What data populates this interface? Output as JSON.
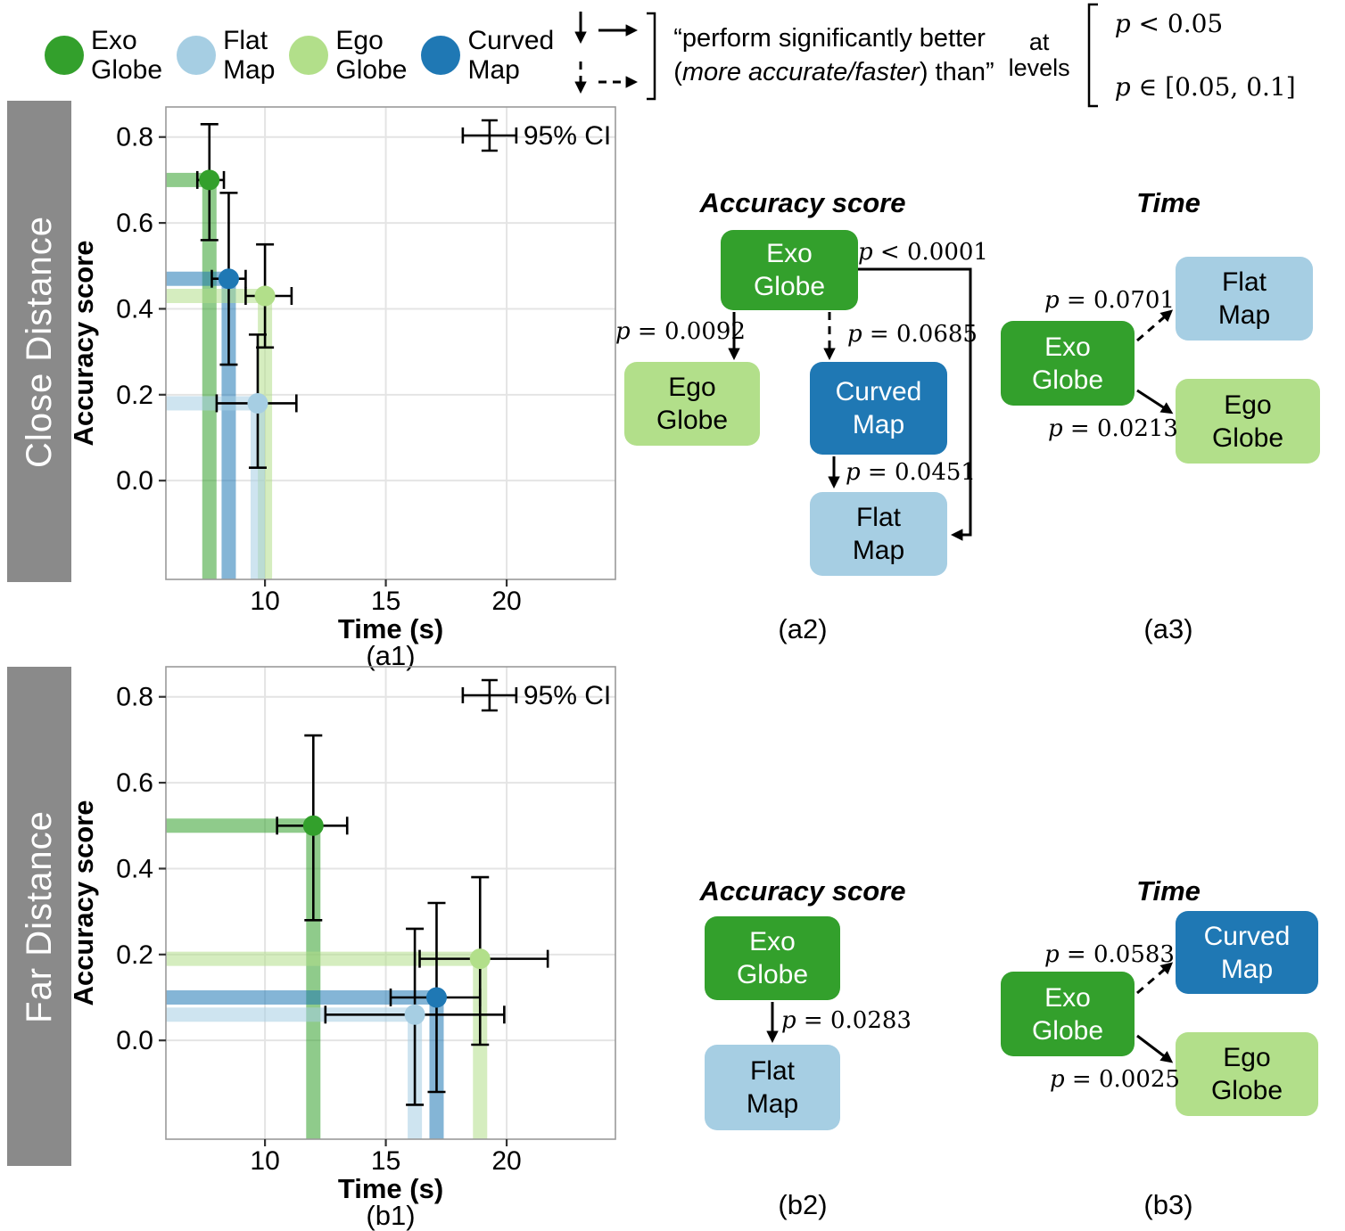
{
  "colors": {
    "exo_globe": "#33a02c",
    "flat_map": "#a6cee3",
    "ego_globe": "#b2df8a",
    "curved_map": "#1f78b4",
    "row_label_bg": "#8a8a8a",
    "grid": "#e4e4e4",
    "panel_border": "#9a9a9a"
  },
  "conditions": {
    "exo": {
      "line1": "Exo",
      "line2": "Globe",
      "color_key": "exo_globe"
    },
    "flat": {
      "line1": "Flat",
      "line2": "Map",
      "color_key": "flat_map"
    },
    "ego": {
      "line1": "Ego",
      "line2": "Globe",
      "color_key": "ego_globe"
    },
    "curved": {
      "line1": "Curved",
      "line2": "Map",
      "color_key": "curved_map"
    }
  },
  "header": {
    "quote_line1": "“perform significantly better",
    "quote_pre": "(",
    "quote_italic": "more accurate/faster",
    "quote_post": ") than”",
    "at_word": "at",
    "levels_word": "levels",
    "solid_level": "p < 0.05",
    "dashed_level": "p ∈ [0.05, 0.1]"
  },
  "rows": {
    "close": {
      "label": "Close Distance"
    },
    "far": {
      "label": "Far Distance"
    }
  },
  "chart_data": [
    {
      "id": "a1",
      "type": "scatter",
      "caption": "(a1)",
      "xlabel": "Time (s)",
      "ylabel": "Accuracy score",
      "ci_legend": "95% CI",
      "grid": true,
      "xlim": [
        5.9,
        24.5
      ],
      "ylim": [
        -0.23,
        0.87
      ],
      "xticks": [
        10,
        15,
        20
      ],
      "xtick_labels": [
        "10",
        "15",
        "20"
      ],
      "yticks": [
        0,
        0.2,
        0.4,
        0.6,
        0.8
      ],
      "ytick_labels": [
        "0.0",
        "0.2",
        "0.4",
        "0.6",
        "0.8"
      ],
      "points": [
        {
          "name": "Exo Globe",
          "key": "exo",
          "x": 7.7,
          "y": 0.7,
          "x_ci": [
            7.2,
            8.3
          ],
          "y_ci": [
            0.56,
            0.83
          ]
        },
        {
          "name": "Curved Map",
          "key": "curved",
          "x": 8.5,
          "y": 0.47,
          "x_ci": [
            7.8,
            9.2
          ],
          "y_ci": [
            0.27,
            0.67
          ]
        },
        {
          "name": "Ego Globe",
          "key": "ego",
          "x": 10.0,
          "y": 0.43,
          "x_ci": [
            9.2,
            11.1
          ],
          "y_ci": [
            0.31,
            0.55
          ]
        },
        {
          "name": "Flat Map",
          "key": "flat",
          "x": 9.7,
          "y": 0.18,
          "x_ci": [
            8.0,
            11.3
          ],
          "y_ci": [
            0.03,
            0.34
          ]
        }
      ]
    },
    {
      "id": "b1",
      "type": "scatter",
      "caption": "(b1)",
      "xlabel": "Time (s)",
      "ylabel": "Accuracy score",
      "ci_legend": "95% CI",
      "grid": true,
      "xlim": [
        5.9,
        24.5
      ],
      "ylim": [
        -0.23,
        0.87
      ],
      "xticks": [
        10,
        15,
        20
      ],
      "xtick_labels": [
        "10",
        "15",
        "20"
      ],
      "yticks": [
        0,
        0.2,
        0.4,
        0.6,
        0.8
      ],
      "ytick_labels": [
        "0.0",
        "0.2",
        "0.4",
        "0.6",
        "0.8"
      ],
      "points": [
        {
          "name": "Exo Globe",
          "key": "exo",
          "x": 12.0,
          "y": 0.5,
          "x_ci": [
            10.5,
            13.4
          ],
          "y_ci": [
            0.28,
            0.71
          ]
        },
        {
          "name": "Ego Globe",
          "key": "ego",
          "x": 18.9,
          "y": 0.19,
          "x_ci": [
            16.4,
            21.7
          ],
          "y_ci": [
            -0.01,
            0.38
          ]
        },
        {
          "name": "Curved Map",
          "key": "curved",
          "x": 17.1,
          "y": 0.1,
          "x_ci": [
            15.2,
            18.9
          ],
          "y_ci": [
            -0.12,
            0.32
          ]
        },
        {
          "name": "Flat Map",
          "key": "flat",
          "x": 16.2,
          "y": 0.06,
          "x_ci": [
            12.5,
            19.9
          ],
          "y_ci": [
            -0.15,
            0.26
          ]
        }
      ]
    }
  ],
  "diagrams": {
    "a2": {
      "title": "Accuracy score",
      "caption": "(a2)",
      "edges": [
        {
          "from": "Exo Globe",
          "to": "Ego Globe",
          "style": "solid",
          "p": "p = 0.0092"
        },
        {
          "from": "Exo Globe",
          "to": "Curved Map",
          "style": "dashed",
          "p": "p = 0.0685"
        },
        {
          "from": "Curved Map",
          "to": "Flat Map",
          "style": "solid",
          "p": "p = 0.0451"
        },
        {
          "from": "Exo Globe",
          "to": "Flat Map",
          "style": "solid",
          "p": "p < 0.0001"
        }
      ]
    },
    "a3": {
      "title": "Time",
      "caption": "(a3)",
      "edges": [
        {
          "from": "Exo Globe",
          "to": "Flat Map",
          "style": "dashed",
          "p": "p = 0.0701"
        },
        {
          "from": "Exo Globe",
          "to": "Ego Globe",
          "style": "solid",
          "p": "p = 0.0213"
        }
      ]
    },
    "b2": {
      "title": "Accuracy score",
      "caption": "(b2)",
      "edges": [
        {
          "from": "Exo Globe",
          "to": "Flat Map",
          "style": "solid",
          "p": "p = 0.0283"
        }
      ]
    },
    "b3": {
      "title": "Time",
      "caption": "(b3)",
      "edges": [
        {
          "from": "Exo Globe",
          "to": "Curved Map",
          "style": "dashed",
          "p": "p = 0.0583"
        },
        {
          "from": "Exo Globe",
          "to": "Ego Globe",
          "style": "solid",
          "p": "p = 0.0025"
        }
      ]
    }
  }
}
